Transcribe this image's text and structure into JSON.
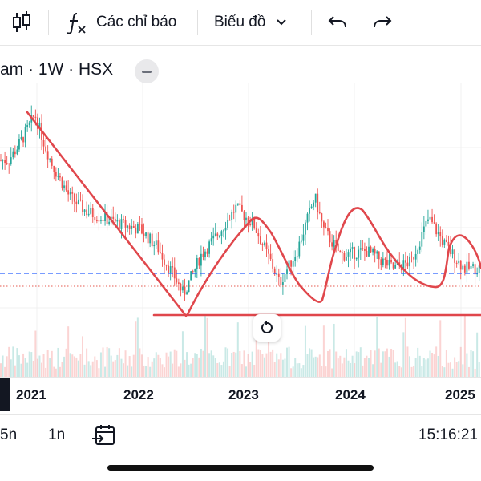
{
  "toolbar": {
    "indicators_label": "Các chỉ báo",
    "chart_type_label": "Biểu đồ",
    "icons": [
      "candles-icon",
      "function-icon",
      "chevron-down-icon",
      "undo-icon",
      "redo-icon"
    ]
  },
  "symbol": {
    "title": "am · 1W · HSX"
  },
  "x_axis": {
    "years": [
      "2021",
      "2022",
      "2023",
      "2024",
      "2025"
    ]
  },
  "bottom": {
    "ranges": [
      "5n",
      "1n"
    ],
    "clock": "15:16:21",
    "icons": [
      "calendar-goto-icon"
    ]
  },
  "colors": {
    "up": "#26a69a",
    "down": "#ef5350",
    "annotation": "#e0474c",
    "dashed_line": "#2962ff"
  },
  "chart_data": {
    "type": "candlestick",
    "interval": "1W",
    "exchange": "HSX",
    "grid": true,
    "price_series_approx": [
      {
        "t": "2020-10",
        "v": 0.72
      },
      {
        "t": "2020-11",
        "v": 0.78
      },
      {
        "t": "2020-12",
        "v": 0.85
      },
      {
        "t": "2021-01",
        "v": 0.93
      },
      {
        "t": "2021-02",
        "v": 0.8
      },
      {
        "t": "2021-03",
        "v": 0.7
      },
      {
        "t": "2021-05",
        "v": 0.55
      },
      {
        "t": "2021-07",
        "v": 0.48
      },
      {
        "t": "2021-09",
        "v": 0.45
      },
      {
        "t": "2021-11",
        "v": 0.42
      },
      {
        "t": "2022-01",
        "v": 0.4
      },
      {
        "t": "2022-03",
        "v": 0.32
      },
      {
        "t": "2022-05",
        "v": 0.18
      },
      {
        "t": "2022-06",
        "v": 0.1
      },
      {
        "t": "2022-08",
        "v": 0.28
      },
      {
        "t": "2022-10",
        "v": 0.38
      },
      {
        "t": "2022-12",
        "v": 0.5
      },
      {
        "t": "2023-02",
        "v": 0.42
      },
      {
        "t": "2023-04",
        "v": 0.25
      },
      {
        "t": "2023-05",
        "v": 0.15
      },
      {
        "t": "2023-07",
        "v": 0.3
      },
      {
        "t": "2023-09",
        "v": 0.55
      },
      {
        "t": "2023-10",
        "v": 0.4
      },
      {
        "t": "2023-12",
        "v": 0.28
      },
      {
        "t": "2024-03",
        "v": 0.3
      },
      {
        "t": "2024-06",
        "v": 0.22
      },
      {
        "t": "2024-08",
        "v": 0.25
      },
      {
        "t": "2024-10",
        "v": 0.45
      },
      {
        "t": "2024-12",
        "v": 0.32
      },
      {
        "t": "2025-02",
        "v": 0.22
      }
    ]
  }
}
